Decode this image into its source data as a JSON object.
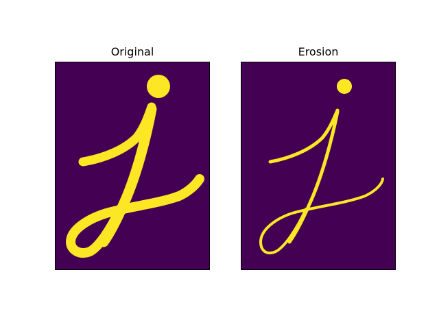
{
  "figure": {
    "panels": [
      {
        "title": "Original"
      },
      {
        "title": "Erosion"
      }
    ]
  },
  "colors": {
    "background": "#440154",
    "foreground": "#fde725",
    "frame": "#000000"
  },
  "shape": {
    "description_glyph": "j"
  }
}
